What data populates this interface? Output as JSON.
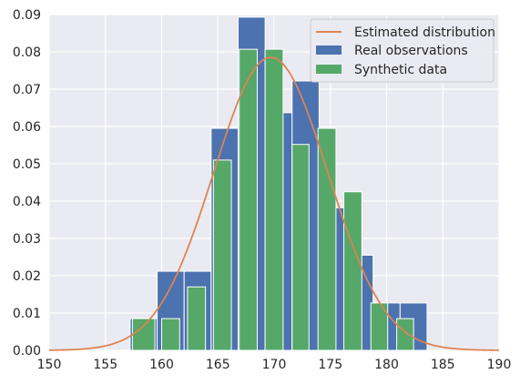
{
  "chart_data": {
    "type": "bar",
    "title": "",
    "xlabel": "",
    "ylabel": "",
    "xlim": [
      150,
      190
    ],
    "ylim": [
      0,
      0.09
    ],
    "xticks": [
      "150",
      "155",
      "160",
      "165",
      "170",
      "175",
      "180",
      "185",
      "190"
    ],
    "yticks": [
      "0.00",
      "0.01",
      "0.02",
      "0.03",
      "0.04",
      "0.05",
      "0.06",
      "0.07",
      "0.08",
      "0.09"
    ],
    "grid": true,
    "legend_position": "top-right",
    "colors": {
      "background": "#eaeaf2",
      "grid": "#ffffff",
      "real": "#4c72b0",
      "synthetic": "#55a868",
      "estimated": "#dd8452"
    },
    "series": [
      {
        "name": "Estimated distribution",
        "kind": "line",
        "distribution": "normal",
        "mean": 169.7,
        "std": 5.08
      },
      {
        "name": "Real observations",
        "kind": "hist",
        "bins": [
          {
            "x0": 157.2,
            "x1": 159.6,
            "y": 0.0085
          },
          {
            "x0": 159.6,
            "x1": 162.0,
            "y": 0.0212
          },
          {
            "x0": 162.0,
            "x1": 164.4,
            "y": 0.0212
          },
          {
            "x0": 164.4,
            "x1": 166.8,
            "y": 0.0595
          },
          {
            "x0": 166.8,
            "x1": 169.2,
            "y": 0.0893
          },
          {
            "x0": 169.2,
            "x1": 170.4,
            "y": 0.0637
          },
          {
            "x0": 170.4,
            "x1": 171.6,
            "y": 0.0637
          },
          {
            "x0": 171.6,
            "x1": 174.0,
            "y": 0.0722
          },
          {
            "x0": 174.0,
            "x1": 176.4,
            "y": 0.0382
          },
          {
            "x0": 176.4,
            "x1": 178.8,
            "y": 0.0255
          },
          {
            "x0": 178.8,
            "x1": 181.2,
            "y": 0.0127
          },
          {
            "x0": 181.2,
            "x1": 183.6,
            "y": 0.0127
          }
        ]
      },
      {
        "name": "Synthetic data",
        "kind": "hist",
        "bins": [
          {
            "x0": 157.4,
            "x1": 159.4,
            "y": 0.0085
          },
          {
            "x0": 160.0,
            "x1": 161.6,
            "y": 0.0085
          },
          {
            "x0": 162.3,
            "x1": 163.9,
            "y": 0.017
          },
          {
            "x0": 164.6,
            "x1": 166.2,
            "y": 0.051
          },
          {
            "x0": 166.9,
            "x1": 168.5,
            "y": 0.0807
          },
          {
            "x0": 169.2,
            "x1": 170.8,
            "y": 0.0807
          },
          {
            "x0": 171.6,
            "x1": 173.1,
            "y": 0.0552
          },
          {
            "x0": 173.9,
            "x1": 175.5,
            "y": 0.0595
          },
          {
            "x0": 176.2,
            "x1": 177.8,
            "y": 0.0425
          },
          {
            "x0": 178.6,
            "x1": 180.1,
            "y": 0.0127
          },
          {
            "x0": 180.9,
            "x1": 182.4,
            "y": 0.0085
          }
        ]
      }
    ]
  }
}
